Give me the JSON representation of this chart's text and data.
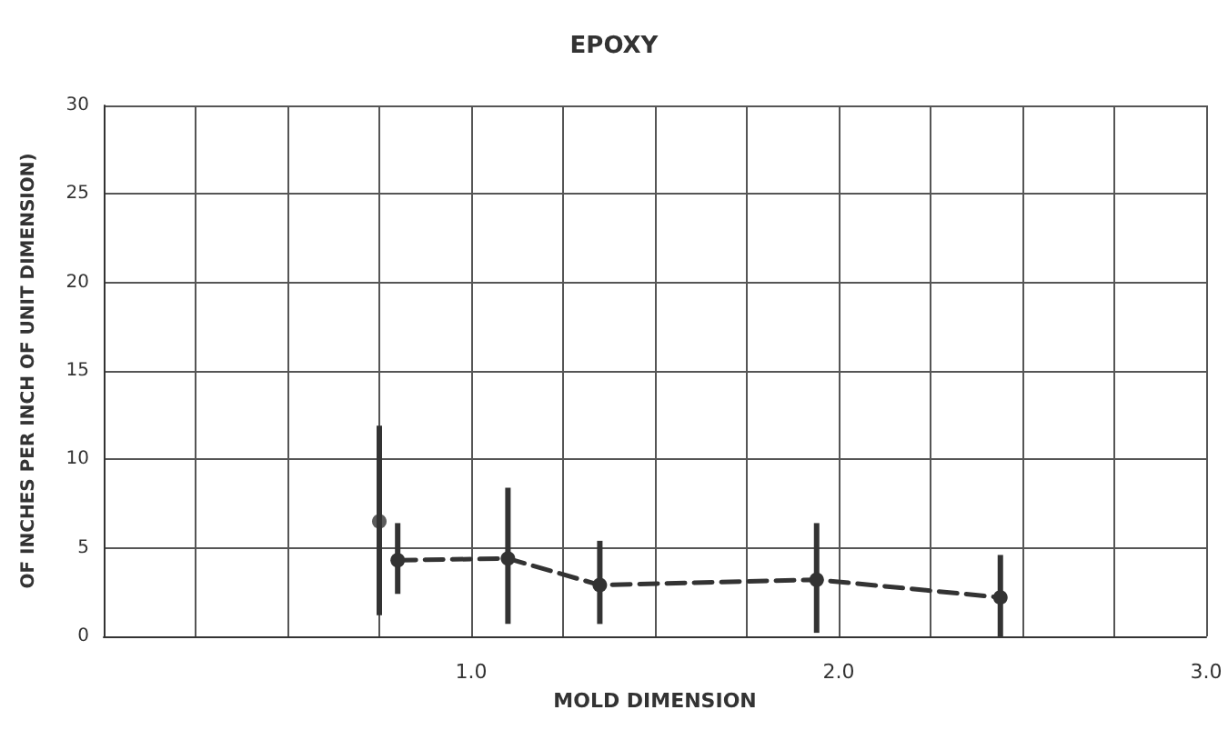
{
  "chart_data": {
    "type": "line",
    "title": "EPOXY",
    "xlabel": "MOLD DIMENSION",
    "ylabel": "OF INCHES PER INCH OF UNIT DIMENSION)",
    "series": [
      {
        "type": "scatter",
        "color": "#333333",
        "x": [
          0.75
        ],
        "values": [
          6.5
        ],
        "errors": [
          [
            1.2,
            11.9
          ]
        ],
        "marker": "circle"
      },
      {
        "color": "#333333",
        "x": [
          0.8,
          1.1,
          1.35,
          1.94,
          2.44
        ],
        "values": [
          4.3,
          4.4,
          2.9,
          3.2,
          2.2
        ],
        "errors": [
          [
            2.4,
            6.4
          ],
          [
            0.7,
            8.4
          ],
          [
            0.7,
            5.4
          ],
          [
            0.2,
            6.4
          ],
          [
            0,
            4.6
          ]
        ],
        "marker": "circle",
        "line_style": "dashed"
      }
    ],
    "xlim": [
      0,
      3
    ],
    "xticks": [
      {
        "value": 0,
        "label": null
      },
      {
        "value": 0.25,
        "label": null
      },
      {
        "value": 0.5,
        "label": null
      },
      {
        "value": 0.75,
        "label": null
      },
      {
        "value": 1,
        "label": "1.0"
      },
      {
        "value": 1.25,
        "label": null
      },
      {
        "value": 1.5,
        "label": null
      },
      {
        "value": 1.75,
        "label": null
      },
      {
        "value": 2,
        "label": "2.0"
      },
      {
        "value": 2.25,
        "label": null
      },
      {
        "value": 2.5,
        "label": null
      },
      {
        "value": 2.75,
        "label": null
      },
      {
        "value": 3,
        "label": "3.0"
      }
    ],
    "ylim": [
      0,
      30
    ],
    "yticks": [
      0,
      5,
      10,
      15,
      20,
      25,
      30
    ],
    "grid": true
  }
}
